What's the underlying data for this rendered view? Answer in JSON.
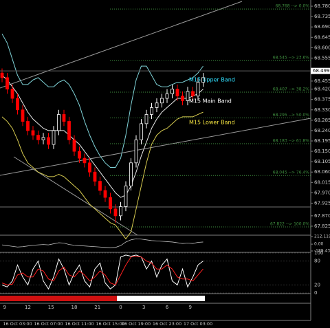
{
  "chart_data": {
    "type": "candlestick",
    "ylim": [
      67.786,
      68.807
    ],
    "yticks": [
      {
        "value": 68.78,
        "label": "68.780"
      },
      68.735,
      {
        "value": 68.69,
        "label": "68.690"
      },
      68.645,
      {
        "value": 68.6,
        "label": "68.600"
      },
      68.555,
      68.455,
      {
        "value": 68.42,
        "label": "68.420"
      },
      68.375,
      {
        "value": 68.33,
        "label": "68.330"
      },
      68.285,
      {
        "value": 68.24,
        "label": "68.240"
      },
      68.195,
      {
        "value": 68.15,
        "label": "68.150"
      },
      68.105,
      {
        "value": 68.06,
        "label": "68.060"
      },
      68.015,
      {
        "value": 67.97,
        "label": "67.970"
      },
      67.925,
      {
        "value": 67.87,
        "label": "67.870"
      },
      67.825
    ],
    "last_price": 68.499,
    "categories": [
      null,
      null,
      null,
      "16 Oct 03:00",
      null,
      null,
      null,
      null,
      null,
      "16 Oct 07:00",
      null,
      null,
      null,
      null,
      null,
      "16 Oct 11:00",
      null,
      null,
      null,
      null,
      null,
      "16 Oct 15:00",
      null,
      null,
      null,
      null,
      "16 Oct 19:00",
      null,
      null,
      null,
      null,
      null,
      "16 Oct 23:00",
      null,
      null,
      null,
      null,
      null,
      "17 Oct 03:00",
      null
    ],
    "open": [
      68.49,
      68.47,
      68.42,
      68.38,
      68.33,
      68.28,
      68.24,
      68.22,
      68.2,
      68.21,
      68.18,
      68.24,
      68.31,
      68.28,
      68.2,
      68.15,
      68.12,
      68.1,
      68.06,
      68.02,
      67.98,
      67.95,
      67.9,
      67.87,
      67.91,
      68.0,
      68.1,
      68.2,
      68.27,
      68.31,
      68.34,
      68.36,
      68.38,
      68.4,
      68.42,
      68.39,
      68.37,
      68.41,
      68.39,
      68.45
    ],
    "high": [
      68.51,
      68.49,
      68.44,
      68.4,
      68.35,
      68.3,
      68.26,
      68.24,
      68.23,
      68.23,
      68.26,
      68.33,
      68.33,
      68.3,
      68.22,
      68.17,
      68.14,
      68.12,
      68.08,
      68.04,
      68.0,
      67.97,
      67.92,
      67.93,
      68.02,
      68.12,
      68.22,
      68.29,
      68.33,
      68.36,
      68.38,
      68.4,
      68.42,
      68.44,
      68.44,
      68.41,
      68.43,
      68.43,
      68.47,
      68.49
    ],
    "low": [
      68.45,
      68.4,
      68.36,
      68.31,
      68.26,
      68.22,
      68.2,
      68.18,
      68.18,
      68.16,
      68.16,
      68.22,
      68.26,
      68.18,
      68.13,
      68.1,
      68.08,
      68.04,
      68.0,
      67.96,
      67.93,
      67.88,
      67.84,
      67.85,
      67.89,
      67.98,
      68.08,
      68.18,
      68.25,
      68.29,
      68.32,
      68.34,
      68.36,
      68.38,
      68.37,
      68.35,
      68.35,
      68.37,
      68.37,
      68.43
    ],
    "close": [
      68.47,
      68.42,
      68.38,
      68.33,
      68.28,
      68.24,
      68.22,
      68.2,
      68.21,
      68.18,
      68.24,
      68.31,
      68.28,
      68.2,
      68.15,
      68.12,
      68.1,
      68.06,
      68.02,
      67.98,
      67.95,
      67.9,
      67.87,
      67.91,
      68.0,
      68.1,
      68.2,
      68.27,
      68.31,
      68.34,
      68.36,
      68.38,
      68.4,
      68.42,
      68.39,
      68.37,
      68.41,
      68.39,
      68.45,
      68.47
    ],
    "up_color": "#ffffff",
    "down_color": "#ff0000",
    "series": [
      {
        "name": "M15 Upper Band",
        "color": "#7fd3d8",
        "values": [
          68.66,
          68.62,
          68.55,
          68.48,
          68.44,
          68.44,
          68.46,
          68.47,
          68.45,
          68.43,
          68.43,
          68.45,
          68.46,
          68.44,
          68.4,
          68.35,
          68.28,
          68.22,
          68.17,
          68.13,
          68.1,
          68.08,
          68.08,
          68.12,
          68.22,
          68.35,
          68.46,
          68.52,
          68.52,
          68.48,
          68.44,
          68.43,
          68.43,
          68.44,
          68.45,
          68.45,
          68.46,
          68.47,
          68.49,
          68.52
        ]
      },
      {
        "name": "M15 Main Band",
        "color": "#e8e8e8",
        "values": [
          68.48,
          68.46,
          68.43,
          68.4,
          68.36,
          68.32,
          68.29,
          68.27,
          68.25,
          68.24,
          68.24,
          68.24,
          68.24,
          68.22,
          68.2,
          68.18,
          68.15,
          68.12,
          68.09,
          68.06,
          68.03,
          68.0,
          67.97,
          67.95,
          67.96,
          68.0,
          68.06,
          68.13,
          68.19,
          68.25,
          68.29,
          68.32,
          68.34,
          68.36,
          68.38,
          68.38,
          68.38,
          68.39,
          68.4,
          68.42
        ]
      },
      {
        "name": "M15 Lower Band",
        "color": "#d8cc50",
        "values": [
          68.3,
          68.28,
          68.25,
          68.2,
          68.14,
          68.1,
          68.08,
          68.06,
          68.05,
          68.04,
          68.04,
          68.05,
          68.04,
          68.02,
          68.0,
          67.98,
          67.95,
          67.92,
          67.9,
          67.88,
          67.86,
          67.84,
          67.83,
          67.8,
          67.77,
          67.8,
          67.9,
          68.0,
          68.1,
          68.18,
          68.22,
          68.24,
          68.25,
          68.27,
          68.29,
          68.3,
          68.3,
          68.3,
          68.31,
          68.32
        ]
      }
    ],
    "fib_color": "#3f8f3f",
    "fib_levels": [
      {
        "value": 68.768,
        "label": "68.768 --> 0.0%"
      },
      {
        "value": 68.545,
        "label": "68.545 --> 23.6%"
      },
      {
        "value": 68.407,
        "label": "68.407 --> 38.2%"
      },
      {
        "value": 68.295,
        "label": "68.295 --> 50.0%"
      },
      {
        "value": 68.183,
        "label": "68.183 --> 61.8%"
      },
      {
        "value": 68.045,
        "label": "68.045 --> 76.4%"
      },
      {
        "value": 67.822,
        "label": "67.822 --> 100.0%"
      }
    ],
    "oscillator": {
      "ylim": [
        -189.43,
        212.1194
      ],
      "yticks": [
        212.1194,
        {
          "value": 0,
          "label": "0.00"
        },
        {
          "value": -189.43,
          "label": "-189.430"
        }
      ],
      "color": "#c0c0c0",
      "values": [
        -20,
        -40,
        -60,
        -80,
        -70,
        -50,
        -30,
        -20,
        -10,
        -20,
        10,
        40,
        30,
        -10,
        -30,
        -40,
        -50,
        -60,
        -70,
        -80,
        -90,
        -100,
        -90,
        -40,
        60,
        120,
        150,
        140,
        120,
        100,
        90,
        80,
        70,
        60,
        40,
        20,
        30,
        20,
        50,
        60
      ]
    },
    "stochastic": {
      "ylim": [
        0,
        100
      ],
      "yticks": [
        100,
        80,
        20,
        0
      ],
      "lines": [
        {
          "color": "#ffffff",
          "values": [
            20,
            15,
            30,
            70,
            40,
            20,
            60,
            80,
            30,
            10,
            40,
            85,
            60,
            20,
            50,
            70,
            30,
            15,
            60,
            75,
            25,
            10,
            20,
            90,
            95,
            92,
            95,
            90,
            60,
            80,
            40,
            70,
            85,
            30,
            20,
            60,
            15,
            40,
            70,
            80
          ]
        },
        {
          "color": "#ff2020",
          "values": [
            25,
            20,
            22,
            45,
            50,
            40,
            40,
            60,
            55,
            35,
            30,
            55,
            65,
            45,
            40,
            55,
            45,
            30,
            40,
            55,
            45,
            25,
            20,
            45,
            70,
            90,
            92,
            90,
            80,
            75,
            60,
            60,
            70,
            60,
            40,
            35,
            35,
            30,
            45,
            60
          ]
        }
      ]
    },
    "hour_labels": [
      "9",
      "12",
      "15",
      "18",
      "21",
      "0",
      "3",
      "6",
      "9"
    ]
  }
}
